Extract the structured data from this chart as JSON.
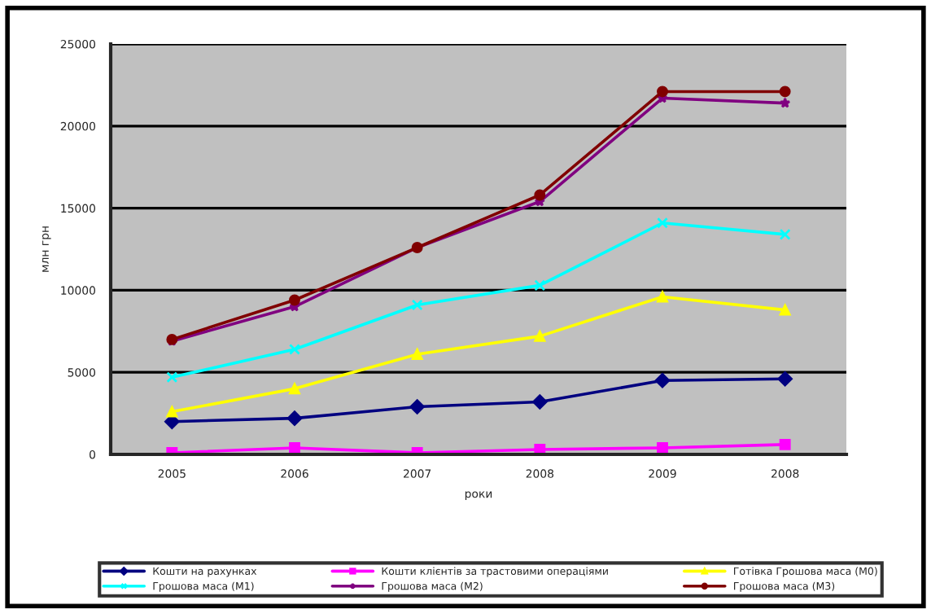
{
  "chart_data": {
    "type": "line",
    "xlabel": "роки",
    "ylabel": "млн грн",
    "categories": [
      "2005",
      "2006",
      "2007",
      "2008",
      "2009",
      "2008"
    ],
    "ylim": [
      0,
      25000
    ],
    "yticks": [
      0,
      5000,
      10000,
      15000,
      20000,
      25000
    ],
    "grid": "y",
    "legend": "bottom",
    "series": [
      {
        "name": "Кошти на рахунках",
        "color": "#000080",
        "marker": "diamond",
        "values": [
          2000,
          2200,
          2900,
          3200,
          4500,
          4600
        ]
      },
      {
        "name": "Кошти клієнтів за трастовими операціями",
        "color": "#ff00ff",
        "marker": "square",
        "values": [
          100,
          400,
          100,
          300,
          400,
          600
        ]
      },
      {
        "name": "Готівка Грошова маса (М0)",
        "color": "#ffff00",
        "marker": "triangle",
        "values": [
          2600,
          4000,
          6100,
          7200,
          9600,
          8800
        ]
      },
      {
        "name": "Грошова маса (М1)",
        "color": "#00ffff",
        "marker": "cross",
        "values": [
          4700,
          6400,
          9100,
          10300,
          14100,
          13400
        ]
      },
      {
        "name": "Грошова маса (М2)",
        "color": "#800080",
        "marker": "star",
        "values": [
          6900,
          9000,
          12600,
          15400,
          21700,
          21400
        ]
      },
      {
        "name": "Грошова маса (М3)",
        "color": "#800000",
        "marker": "circle",
        "values": [
          7000,
          9400,
          12600,
          15800,
          22100,
          22100
        ]
      }
    ]
  }
}
